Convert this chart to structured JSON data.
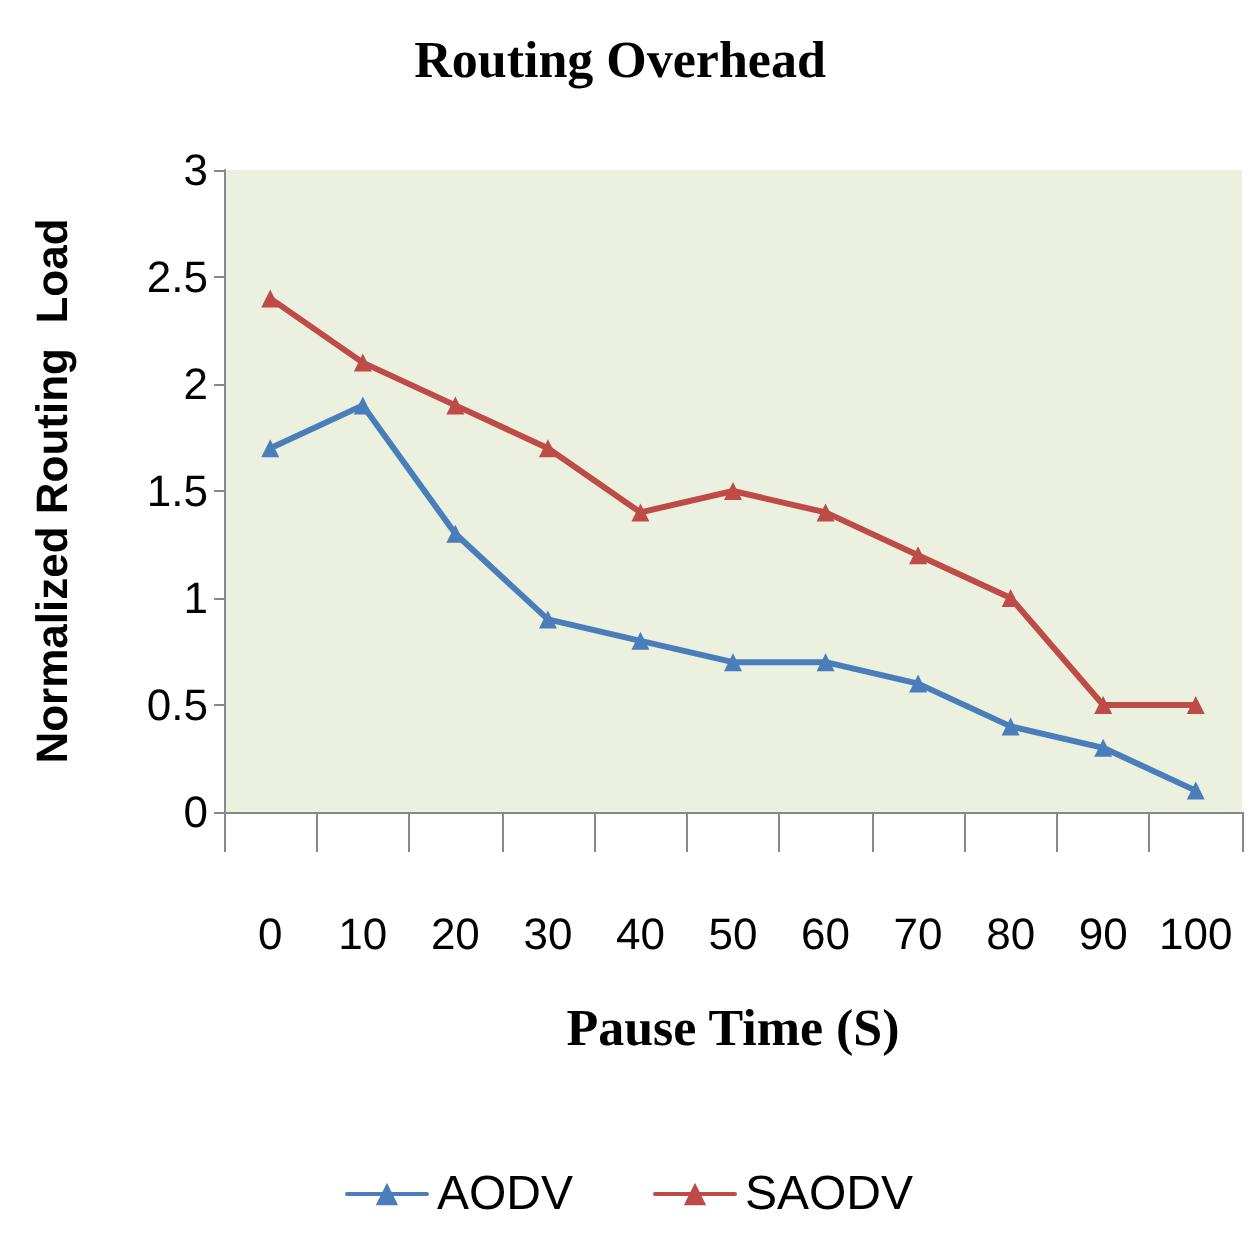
{
  "chart_data": {
    "type": "line",
    "title": "Routing Overhead",
    "xlabel": "Pause Time (S)",
    "ylabel": "Normalized Routing  Load",
    "categories": [
      "0",
      "10",
      "20",
      "30",
      "40",
      "50",
      "60",
      "70",
      "80",
      "90",
      "100"
    ],
    "series": [
      {
        "name": "AODV",
        "color": "#4a7ebb",
        "values": [
          1.7,
          1.9,
          1.3,
          0.9,
          0.8,
          0.7,
          0.7,
          0.6,
          0.4,
          0.3,
          0.1
        ]
      },
      {
        "name": "SAODV",
        "color": "#be4b48",
        "values": [
          2.4,
          2.1,
          1.9,
          1.7,
          1.4,
          1.5,
          1.4,
          1.2,
          1.0,
          0.5,
          0.5
        ]
      }
    ],
    "ylim": [
      0,
      3
    ],
    "yticks": [
      0,
      0.5,
      1,
      1.5,
      2,
      2.5,
      3
    ],
    "grid": false,
    "legend": "bottom",
    "marker": "triangle",
    "line_style": "solid"
  }
}
